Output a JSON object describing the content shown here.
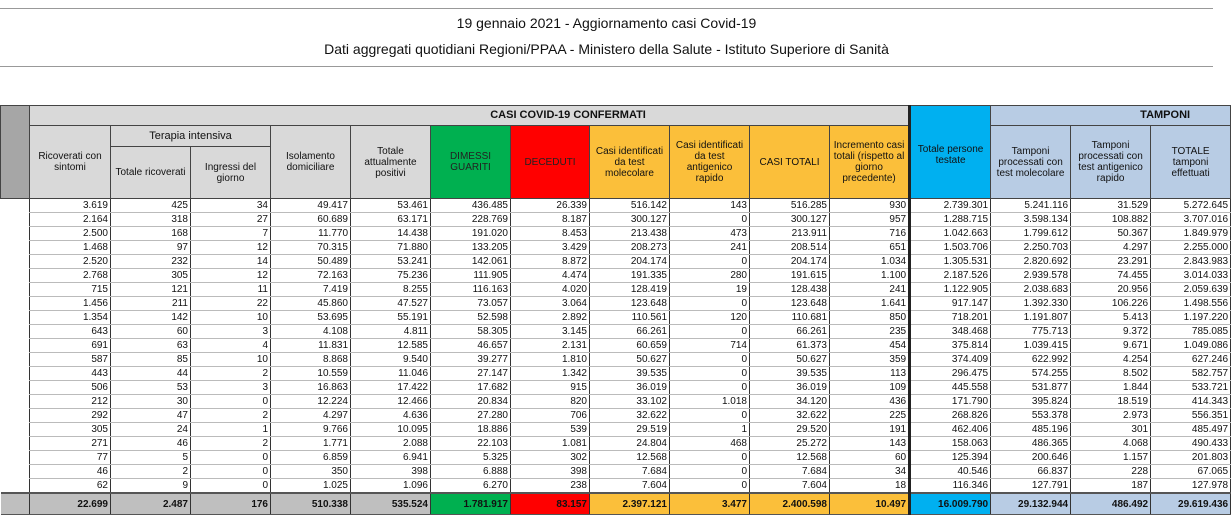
{
  "header": {
    "title": "19 gennaio 2021 - Aggiornamento casi Covid-19",
    "subtitle": "Dati aggregati quotidiani Regioni/PPAA - Ministero della Salute - Istituto Superiore di Sanità"
  },
  "table": {
    "group_confermati": "CASI COVID-19 CONFERMATI",
    "group_tamponi": "TAMPONI",
    "group_terapia": "Terapia intensiva",
    "columns": [
      "Ricoverati con sintomi",
      "Totale ricoverati",
      "Ingressi del giorno",
      "Isolamento domiciliare",
      "Totale attualmente positivi",
      "DIMESSI GUARITI",
      "DECEDUTI",
      "Casi identificati da test molecolare",
      "Casi identificati da test antigenico rapido",
      "CASI TOTALI",
      "Incremento casi totali (rispetto al giorno precedente)",
      "Totale persone testate",
      "Tamponi processati con test molecolare",
      "Tamponi processati con test antigenico rapido",
      "TOTALE tamponi effettuati"
    ],
    "rows": [
      [
        "3.619",
        "425",
        "34",
        "49.417",
        "53.461",
        "436.485",
        "26.339",
        "516.142",
        "143",
        "516.285",
        "930",
        "2.739.301",
        "5.241.116",
        "31.529",
        "5.272.645"
      ],
      [
        "2.164",
        "318",
        "27",
        "60.689",
        "63.171",
        "228.769",
        "8.187",
        "300.127",
        "0",
        "300.127",
        "957",
        "1.288.715",
        "3.598.134",
        "108.882",
        "3.707.016"
      ],
      [
        "2.500",
        "168",
        "7",
        "11.770",
        "14.438",
        "191.020",
        "8.453",
        "213.438",
        "473",
        "213.911",
        "716",
        "1.042.663",
        "1.799.612",
        "50.367",
        "1.849.979"
      ],
      [
        "1.468",
        "97",
        "12",
        "70.315",
        "71.880",
        "133.205",
        "3.429",
        "208.273",
        "241",
        "208.514",
        "651",
        "1.503.706",
        "2.250.703",
        "4.297",
        "2.255.000"
      ],
      [
        "2.520",
        "232",
        "14",
        "50.489",
        "53.241",
        "142.061",
        "8.872",
        "204.174",
        "0",
        "204.174",
        "1.034",
        "1.305.531",
        "2.820.692",
        "23.291",
        "2.843.983"
      ],
      [
        "2.768",
        "305",
        "12",
        "72.163",
        "75.236",
        "111.905",
        "4.474",
        "191.335",
        "280",
        "191.615",
        "1.100",
        "2.187.526",
        "2.939.578",
        "74.455",
        "3.014.033"
      ],
      [
        "715",
        "121",
        "11",
        "7.419",
        "8.255",
        "116.163",
        "4.020",
        "128.419",
        "19",
        "128.438",
        "241",
        "1.122.905",
        "2.038.683",
        "20.956",
        "2.059.639"
      ],
      [
        "1.456",
        "211",
        "22",
        "45.860",
        "47.527",
        "73.057",
        "3.064",
        "123.648",
        "0",
        "123.648",
        "1.641",
        "917.147",
        "1.392.330",
        "106.226",
        "1.498.556"
      ],
      [
        "1.354",
        "142",
        "10",
        "53.695",
        "55.191",
        "52.598",
        "2.892",
        "110.561",
        "120",
        "110.681",
        "850",
        "718.201",
        "1.191.807",
        "5.413",
        "1.197.220"
      ],
      [
        "643",
        "60",
        "3",
        "4.108",
        "4.811",
        "58.305",
        "3.145",
        "66.261",
        "0",
        "66.261",
        "235",
        "348.468",
        "775.713",
        "9.372",
        "785.085"
      ],
      [
        "691",
        "63",
        "4",
        "11.831",
        "12.585",
        "46.657",
        "2.131",
        "60.659",
        "714",
        "61.373",
        "454",
        "375.814",
        "1.039.415",
        "9.671",
        "1.049.086"
      ],
      [
        "587",
        "85",
        "10",
        "8.868",
        "9.540",
        "39.277",
        "1.810",
        "50.627",
        "0",
        "50.627",
        "359",
        "374.409",
        "622.992",
        "4.254",
        "627.246"
      ],
      [
        "443",
        "44",
        "2",
        "10.559",
        "11.046",
        "27.147",
        "1.342",
        "39.535",
        "0",
        "39.535",
        "113",
        "296.475",
        "574.255",
        "8.502",
        "582.757"
      ],
      [
        "506",
        "53",
        "3",
        "16.863",
        "17.422",
        "17.682",
        "915",
        "36.019",
        "0",
        "36.019",
        "109",
        "445.558",
        "531.877",
        "1.844",
        "533.721"
      ],
      [
        "212",
        "30",
        "0",
        "12.224",
        "12.466",
        "20.834",
        "820",
        "33.102",
        "1.018",
        "34.120",
        "436",
        "171.790",
        "395.824",
        "18.519",
        "414.343"
      ],
      [
        "292",
        "47",
        "2",
        "4.297",
        "4.636",
        "27.280",
        "706",
        "32.622",
        "0",
        "32.622",
        "225",
        "268.826",
        "553.378",
        "2.973",
        "556.351"
      ],
      [
        "305",
        "24",
        "1",
        "9.766",
        "10.095",
        "18.886",
        "539",
        "29.519",
        "1",
        "29.520",
        "191",
        "462.406",
        "485.196",
        "301",
        "485.497"
      ],
      [
        "271",
        "46",
        "2",
        "1.771",
        "2.088",
        "22.103",
        "1.081",
        "24.804",
        "468",
        "25.272",
        "143",
        "158.063",
        "486.365",
        "4.068",
        "490.433"
      ],
      [
        "77",
        "5",
        "0",
        "6.859",
        "6.941",
        "5.325",
        "302",
        "12.568",
        "0",
        "12.568",
        "60",
        "125.394",
        "200.646",
        "1.157",
        "201.803"
      ],
      [
        "46",
        "2",
        "0",
        "350",
        "398",
        "6.888",
        "398",
        "7.684",
        "0",
        "7.684",
        "34",
        "40.546",
        "66.837",
        "228",
        "67.065"
      ],
      [
        "62",
        "9",
        "0",
        "1.025",
        "1.096",
        "6.270",
        "238",
        "7.604",
        "0",
        "7.604",
        "18",
        "116.346",
        "127.791",
        "187",
        "127.978"
      ]
    ],
    "totals": [
      "22.699",
      "2.487",
      "176",
      "510.338",
      "535.524",
      "1.781.917",
      "83.157",
      "2.397.121",
      "3.477",
      "2.400.598",
      "10.497",
      "16.009.790",
      "29.132.944",
      "486.492",
      "29.619.436"
    ]
  },
  "colors": {
    "guariti": "#00b050",
    "deceduti": "#ff0000",
    "casi": "#fbbf3a",
    "persone_testate": "#00b0f0",
    "tamponi": "#b8cce4",
    "header_gray": "#d9d9d9"
  }
}
